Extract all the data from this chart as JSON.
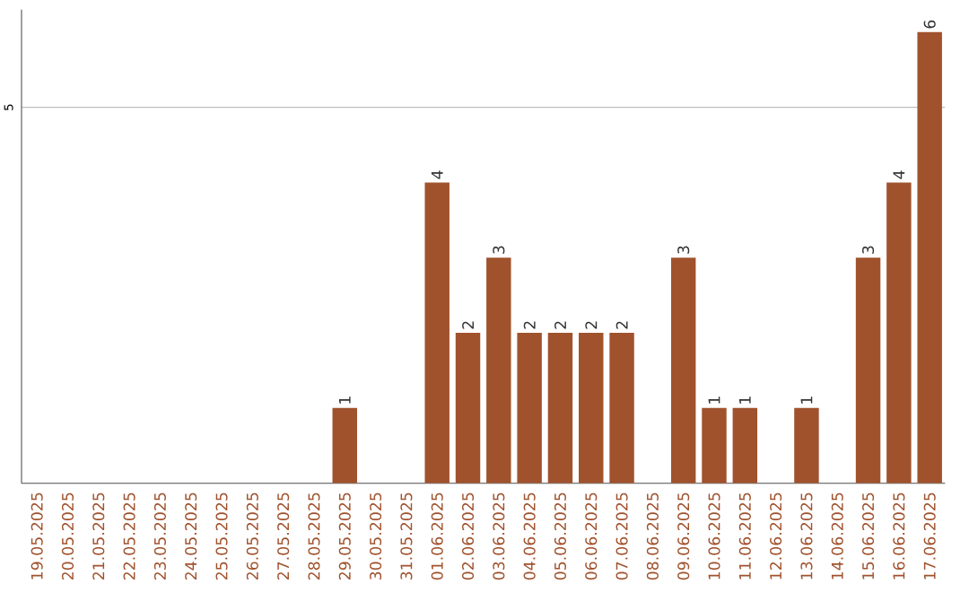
{
  "chart_data": {
    "type": "bar",
    "categories": [
      "19.05.2025",
      "20.05.2025",
      "21.05.2025",
      "22.05.2025",
      "23.05.2025",
      "24.05.2025",
      "25.05.2025",
      "26.05.2025",
      "27.05.2025",
      "28.05.2025",
      "29.05.2025",
      "30.05.2025",
      "31.05.2025",
      "01.06.2025",
      "02.06.2025",
      "03.06.2025",
      "04.06.2025",
      "05.06.2025",
      "06.06.2025",
      "07.06.2025",
      "08.06.2025",
      "09.06.2025",
      "10.06.2025",
      "11.06.2025",
      "12.06.2025",
      "13.06.2025",
      "14.06.2025",
      "15.06.2025",
      "16.06.2025",
      "17.06.2025"
    ],
    "values": [
      0,
      0,
      0,
      0,
      0,
      0,
      0,
      0,
      0,
      0,
      1,
      0,
      0,
      4,
      2,
      3,
      2,
      2,
      2,
      2,
      0,
      3,
      1,
      1,
      0,
      1,
      0,
      3,
      4,
      6
    ],
    "value_labels": [
      null,
      null,
      null,
      null,
      null,
      null,
      null,
      null,
      null,
      null,
      "1",
      null,
      null,
      "4",
      "2",
      "3",
      "2",
      "2",
      "2",
      "2",
      null,
      "3",
      "1",
      "1",
      null,
      "1",
      null,
      "3",
      "4",
      "6"
    ],
    "color": "#a0522d",
    "ylim": [
      0,
      6.3
    ],
    "yticks": [
      5
    ],
    "grid": "y"
  }
}
